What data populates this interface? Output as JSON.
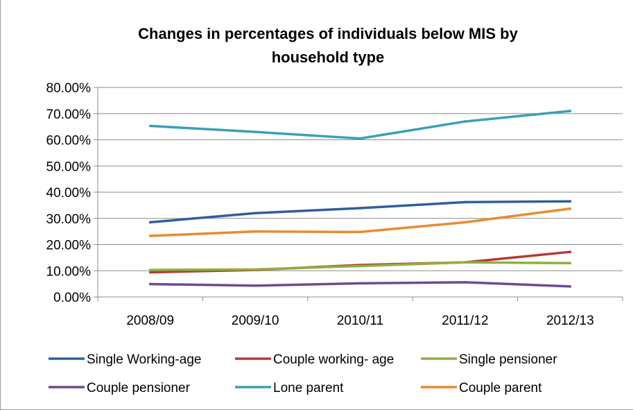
{
  "chart_data": {
    "type": "line",
    "title_lines": [
      "Changes in percentages of individuals below MIS by",
      "household type"
    ],
    "categories": [
      "2008/09",
      "2009/10",
      "2010/11",
      "2011/12",
      "2012/13"
    ],
    "ylim": [
      0,
      80
    ],
    "yticks": [
      0,
      10,
      20,
      30,
      40,
      50,
      60,
      70,
      80
    ],
    "ytick_labels": [
      "0.00%",
      "10.00%",
      "20.00%",
      "30.00%",
      "40.00%",
      "50.00%",
      "60.00%",
      "70.00%",
      "80.00%"
    ],
    "grid": true,
    "legend_position": "bottom",
    "series": [
      {
        "name": "Single Working-age",
        "color": "#2e5f9e",
        "values": [
          28.5,
          32.0,
          33.9,
          36.2,
          36.5
        ]
      },
      {
        "name": "Couple working- age",
        "color": "#b33a33",
        "values": [
          9.4,
          10.3,
          12.2,
          13.2,
          17.2
        ]
      },
      {
        "name": "Single pensioner",
        "color": "#8db03f",
        "values": [
          10.3,
          10.5,
          11.8,
          13.2,
          12.9
        ]
      },
      {
        "name": "Couple pensioner",
        "color": "#6b4c91",
        "values": [
          4.9,
          4.3,
          5.2,
          5.6,
          4.0
        ]
      },
      {
        "name": "Lone parent",
        "color": "#3aa0b8",
        "values": [
          65.3,
          63.0,
          60.5,
          67.0,
          71.0
        ]
      },
      {
        "name": "Couple parent",
        "color": "#e98a33",
        "values": [
          23.3,
          25.0,
          24.8,
          28.5,
          33.7
        ]
      }
    ]
  }
}
